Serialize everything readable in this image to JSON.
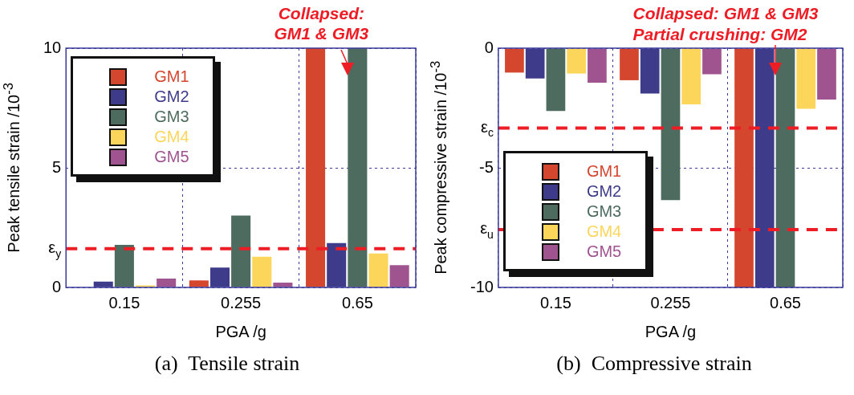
{
  "chart_data": [
    {
      "type": "bar",
      "title": "(a)  Tensile strain",
      "xlabel": "PGA /g",
      "ylabel": "Peak tensile strain /10$^{-3}$",
      "categories": [
        "0.15",
        "0.255",
        "0.65"
      ],
      "series": [
        {
          "name": "GM1",
          "color": "#d4462e",
          "values": [
            0,
            0.29,
            10
          ]
        },
        {
          "name": "GM2",
          "color": "#3d3b8a",
          "values": [
            0.24,
            0.83,
            1.85
          ]
        },
        {
          "name": "GM3",
          "color": "#4e6b5f",
          "values": [
            1.78,
            3.0,
            10
          ]
        },
        {
          "name": "GM4",
          "color": "#fcd65a",
          "values": [
            0.08,
            1.28,
            1.42
          ]
        },
        {
          "name": "GM5",
          "color": "#a0548f",
          "values": [
            0.37,
            0.2,
            0.93
          ]
        }
      ],
      "ylim": [
        0,
        10
      ],
      "yticks": [
        0,
        5,
        10
      ],
      "grid": true,
      "legend": "top left",
      "ref_lines": [
        {
          "axis": "y",
          "value": 1.62,
          "label": "ε$_{y}$",
          "color": "#ee1c25",
          "line_style": "dashed"
        }
      ],
      "annotations": [
        {
          "text": "Collapsed: GM1 & GM3",
          "x": "0.65",
          "y": 10
        }
      ]
    },
    {
      "type": "bar",
      "title": "(b)  Compressive strain",
      "xlabel": "PGA /g",
      "ylabel": "Peak compressive strain /10$^{-3}$",
      "categories": [
        "0.15",
        "0.255",
        "0.65"
      ],
      "series": [
        {
          "name": "GM1",
          "color": "#d4462e",
          "values": [
            -1.02,
            -1.34,
            -10
          ]
        },
        {
          "name": "GM2",
          "color": "#3d3b8a",
          "values": [
            -1.27,
            -1.9,
            -10
          ]
        },
        {
          "name": "GM3",
          "color": "#4e6b5f",
          "values": [
            -2.63,
            -6.35,
            -10
          ]
        },
        {
          "name": "GM4",
          "color": "#fcd65a",
          "values": [
            -1.06,
            -2.35,
            -2.53
          ]
        },
        {
          "name": "GM5",
          "color": "#a0548f",
          "values": [
            -1.44,
            -1.09,
            -2.15
          ]
        }
      ],
      "ylim": [
        -10,
        0
      ],
      "yticks": [
        -10,
        -5,
        0
      ],
      "grid": true,
      "legend": "bottom left",
      "ref_lines": [
        {
          "axis": "y",
          "value": -3.34,
          "label": "ε$_{c}$",
          "color": "#ee1c25",
          "line_style": "dashed"
        },
        {
          "axis": "y",
          "value": -7.58,
          "label": "ε$_{u}$",
          "color": "#ee1c25",
          "line_style": "dashed"
        }
      ],
      "annotations": [
        {
          "text": "Collapsed: GM1 & GM3",
          "x": "0.65",
          "y": 0
        },
        {
          "text": "Partial crushing: GM2",
          "x": "0.65",
          "y": 0
        }
      ]
    }
  ]
}
